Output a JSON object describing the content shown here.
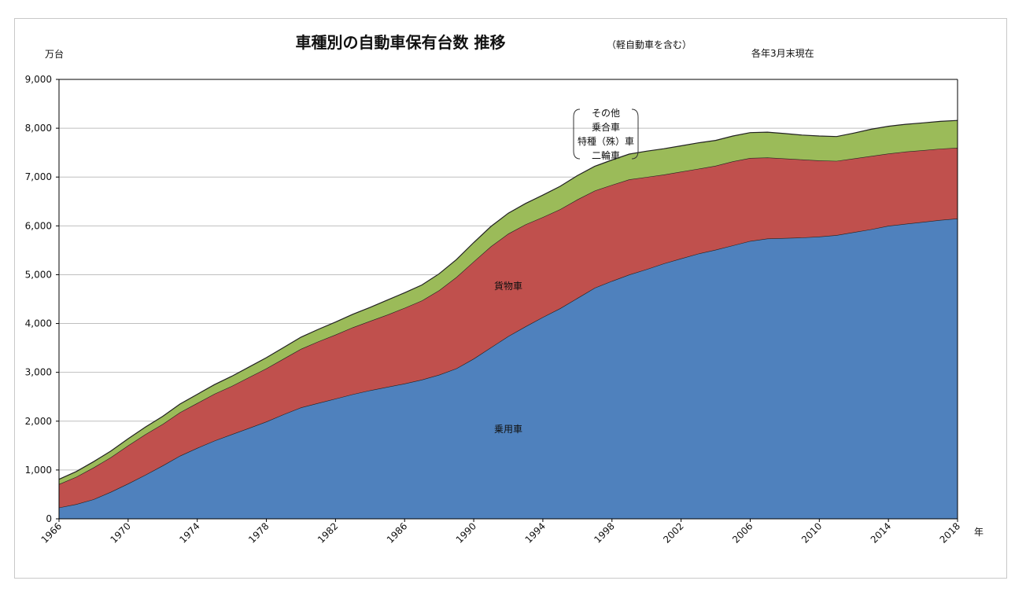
{
  "chart_data": {
    "type": "area",
    "title": "車種別の自動車保有台数  推移",
    "subtitle": "（軽自動車を含む）",
    "note": "各年3月末現在",
    "ylabel": "万台",
    "xlabel": "年",
    "ylim": [
      0,
      9000
    ],
    "yticks": [
      0,
      1000,
      2000,
      3000,
      4000,
      5000,
      6000,
      7000,
      8000,
      9000
    ],
    "ytick_labels": [
      "0",
      "1,000",
      "2,000",
      "3,000",
      "4,000",
      "5,000",
      "6,000",
      "7,000",
      "8,000",
      "9,000"
    ],
    "xlim": [
      1966,
      2018
    ],
    "xtick_labels": [
      "1966",
      "1970",
      "1974",
      "1978",
      "1982",
      "1986",
      "1990",
      "1994",
      "1998",
      "2002",
      "2006",
      "2010",
      "2014",
      "2018"
    ],
    "stacked": true,
    "grid": true,
    "x": [
      1966,
      1967,
      1968,
      1969,
      1970,
      1971,
      1972,
      1973,
      1974,
      1975,
      1976,
      1977,
      1978,
      1979,
      1980,
      1981,
      1982,
      1983,
      1984,
      1985,
      1986,
      1987,
      1988,
      1989,
      1990,
      1991,
      1992,
      1993,
      1994,
      1995,
      1996,
      1997,
      1998,
      1999,
      2000,
      2001,
      2002,
      2003,
      2004,
      2005,
      2006,
      2007,
      2008,
      2009,
      2010,
      2011,
      2012,
      2013,
      2014,
      2015,
      2016,
      2017,
      2018
    ],
    "series": [
      {
        "name": "乗用車",
        "color": "#4f81bd",
        "values": [
          230,
          300,
          400,
          550,
          720,
          900,
          1090,
          1290,
          1450,
          1600,
          1730,
          1860,
          1990,
          2140,
          2280,
          2370,
          2460,
          2550,
          2630,
          2700,
          2770,
          2850,
          2950,
          3080,
          3280,
          3510,
          3740,
          3940,
          4130,
          4310,
          4520,
          4730,
          4870,
          5000,
          5110,
          5230,
          5330,
          5430,
          5510,
          5600,
          5690,
          5740,
          5750,
          5760,
          5780,
          5810,
          5870,
          5930,
          6000,
          6040,
          6080,
          6120,
          6150
        ]
      },
      {
        "name": "貨物車",
        "color": "#c0504d",
        "values": [
          480,
          560,
          650,
          710,
          780,
          830,
          850,
          890,
          920,
          960,
          990,
          1040,
          1090,
          1140,
          1200,
          1260,
          1310,
          1370,
          1420,
          1480,
          1550,
          1620,
          1730,
          1870,
          1990,
          2070,
          2100,
          2090,
          2050,
          2030,
          2020,
          1990,
          1970,
          1950,
          1890,
          1820,
          1780,
          1740,
          1720,
          1720,
          1700,
          1660,
          1630,
          1600,
          1560,
          1520,
          1510,
          1500,
          1480,
          1480,
          1470,
          1460,
          1450
        ]
      },
      {
        "name": "その他 乗合車 特種（殊）車 二輪車",
        "color": "#9bbb59",
        "values": [
          100,
          110,
          120,
          130,
          140,
          150,
          160,
          170,
          180,
          190,
          200,
          210,
          220,
          230,
          240,
          250,
          260,
          270,
          280,
          300,
          310,
          320,
          340,
          360,
          390,
          410,
          420,
          430,
          450,
          470,
          490,
          500,
          510,
          520,
          530,
          530,
          530,
          530,
          520,
          520,
          520,
          520,
          510,
          500,
          500,
          500,
          520,
          550,
          560,
          560,
          560,
          560,
          560
        ]
      }
    ]
  }
}
